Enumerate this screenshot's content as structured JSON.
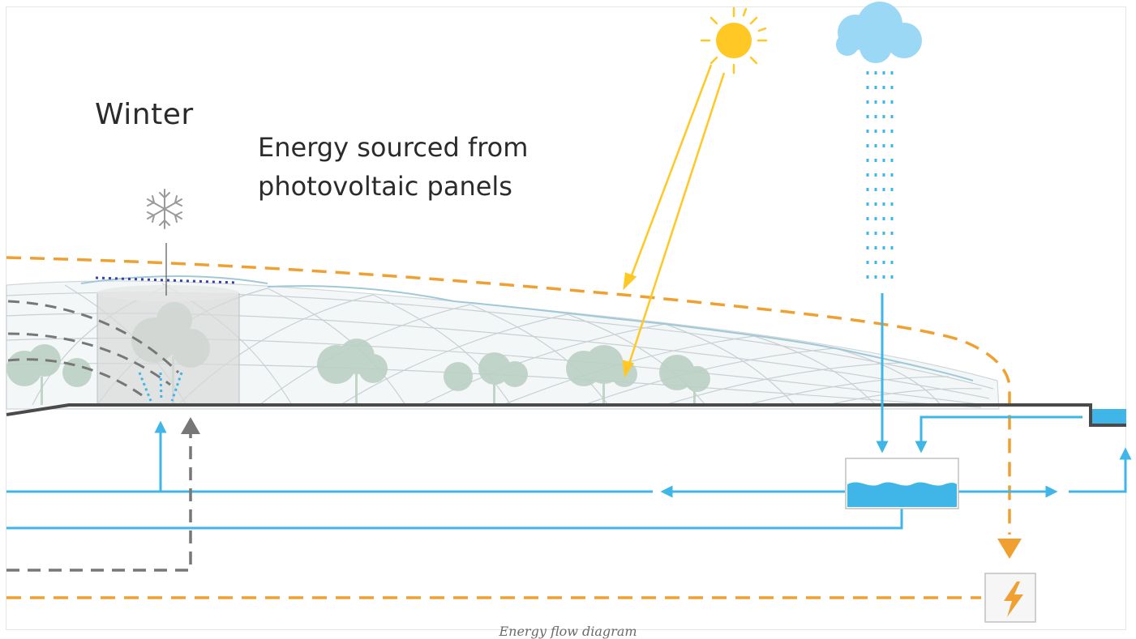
{
  "diagram": {
    "season_label": "Winter",
    "description_lines": [
      "Energy sourced from",
      "photovoltaic panels"
    ],
    "caption": "Energy flow diagram"
  },
  "colors": {
    "energy": "#f0a030",
    "water": "#3fb5e8",
    "heat": "#808080",
    "sun": "#ffc824",
    "cloud": "#9ad8f6",
    "ground": "#4a4a4a",
    "vegetation": "#b9cfc5"
  },
  "icons": {
    "sun": "sun-icon",
    "cloud": "cloud-icon",
    "snowflake": "snowflake-icon",
    "lightning": "lightning-bolt-icon"
  }
}
